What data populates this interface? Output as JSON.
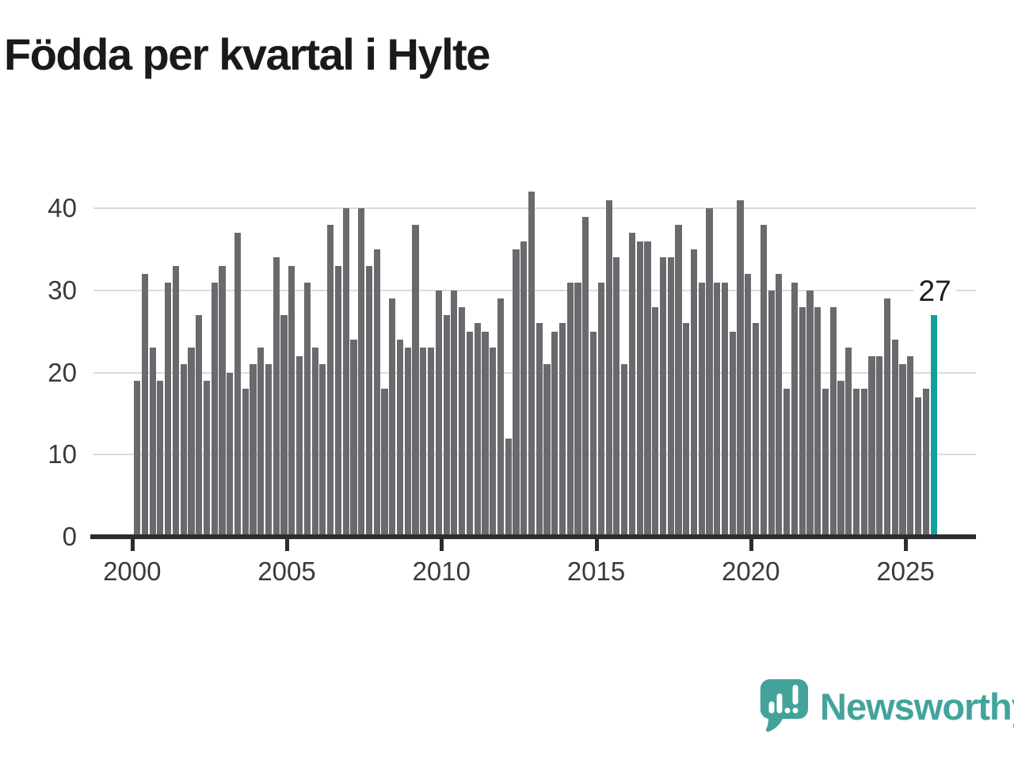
{
  "title": "Födda per kvartal i Hylte",
  "logo": {
    "text": "Newsworthy"
  },
  "colors": {
    "bar": "#6a6a6e",
    "highlight": "#10a19a",
    "axis": "#2d2d2d",
    "grid": "#dbdbdb",
    "axis_label": "#3a3a3a",
    "title": "#1a1a1a",
    "annotation": "#1c1c1c",
    "logo": "#43a39b"
  },
  "chart_data": {
    "type": "bar",
    "title": "Födda per kvartal i Hylte",
    "xlabel": "",
    "ylabel": "",
    "frequency": "quarterly",
    "start_quarter": "2000Q1",
    "end_quarter": "2025Q4",
    "x_tick_labels": [
      "2000",
      "2005",
      "2010",
      "2015",
      "2020",
      "2025"
    ],
    "x_tick_years": [
      2000,
      2005,
      2010,
      2015,
      2020,
      2025
    ],
    "y_ticks": [
      0,
      10,
      20,
      30,
      40
    ],
    "ylim": [
      0,
      43.5
    ],
    "grid": "horizontal",
    "legend": "none",
    "values": [
      19,
      32,
      23,
      19,
      31,
      33,
      21,
      23,
      27,
      19,
      31,
      33,
      20,
      37,
      18,
      21,
      23,
      21,
      34,
      27,
      33,
      22,
      31,
      23,
      21,
      38,
      33,
      40,
      24,
      40,
      33,
      35,
      18,
      29,
      24,
      23,
      38,
      23,
      23,
      30,
      27,
      30,
      28,
      25,
      26,
      25,
      23,
      29,
      12,
      35,
      36,
      42,
      26,
      21,
      25,
      26,
      31,
      31,
      39,
      25,
      31,
      41,
      34,
      21,
      37,
      36,
      36,
      28,
      34,
      34,
      38,
      26,
      35,
      31,
      40,
      31,
      31,
      25,
      41,
      32,
      26,
      38,
      30,
      32,
      18,
      31,
      28,
      30,
      28,
      18,
      28,
      19,
      23,
      18,
      18,
      22,
      22,
      29,
      24,
      21,
      22,
      17,
      18,
      27
    ],
    "highlight": {
      "index": 103,
      "label": "27",
      "value": 27
    }
  }
}
